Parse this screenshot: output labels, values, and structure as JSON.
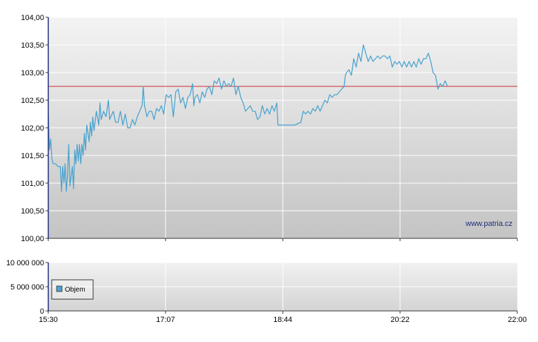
{
  "chart_data": [
    {
      "type": "line",
      "panel": "price",
      "x_ticks": [
        "15:30",
        "17:07",
        "18:44",
        "20:22",
        "22:00"
      ],
      "y_ticks": [
        "100,00",
        "100,50",
        "101,00",
        "101,50",
        "102,00",
        "102,50",
        "103,00",
        "103,50",
        "104,00"
      ],
      "ylim": [
        100.0,
        104.0
      ],
      "xlim_minutes": [
        930,
        1320
      ],
      "grid": true,
      "reference_line": {
        "value": 102.75,
        "color": "#cc2a2a"
      },
      "watermark": "www.patria.cz",
      "series": [
        {
          "color": "#4aa3cf",
          "points": [
            [
              930,
              102.25
            ],
            [
              931,
              101.6
            ],
            [
              932,
              101.8
            ],
            [
              933,
              101.45
            ],
            [
              934,
              101.35
            ],
            [
              936,
              101.35
            ],
            [
              938,
              101.3
            ],
            [
              940,
              101.3
            ],
            [
              941,
              100.85
            ],
            [
              942,
              101.3
            ],
            [
              943,
              101.0
            ],
            [
              944,
              101.35
            ],
            [
              945,
              100.85
            ],
            [
              946,
              101.15
            ],
            [
              947,
              101.7
            ],
            [
              948,
              100.95
            ],
            [
              950,
              101.3
            ],
            [
              951,
              100.9
            ],
            [
              952,
              101.6
            ],
            [
              953,
              101.35
            ],
            [
              954,
              101.7
            ],
            [
              955,
              101.4
            ],
            [
              956,
              101.7
            ],
            [
              957,
              101.35
            ],
            [
              958,
              101.7
            ],
            [
              959,
              101.5
            ],
            [
              960,
              101.9
            ],
            [
              961,
              101.6
            ],
            [
              962,
              102.05
            ],
            [
              964,
              101.75
            ],
            [
              965,
              102.1
            ],
            [
              966,
              101.85
            ],
            [
              967,
              102.2
            ],
            [
              968,
              101.95
            ],
            [
              970,
              102.3
            ],
            [
              972,
              102.05
            ],
            [
              973,
              102.45
            ],
            [
              974,
              102.15
            ],
            [
              976,
              102.3
            ],
            [
              978,
              102.2
            ],
            [
              980,
              102.5
            ],
            [
              981,
              102.15
            ],
            [
              984,
              102.3
            ],
            [
              986,
              102.1
            ],
            [
              988,
              102.1
            ],
            [
              990,
              102.3
            ],
            [
              992,
              102.05
            ],
            [
              994,
              102.25
            ],
            [
              996,
              102.0
            ],
            [
              998,
              102.0
            ],
            [
              1000,
              102.15
            ],
            [
              1002,
              102.05
            ],
            [
              1004,
              102.2
            ],
            [
              1006,
              102.3
            ],
            [
              1008,
              102.4
            ],
            [
              1009,
              102.75
            ],
            [
              1010,
              102.4
            ],
            [
              1012,
              102.2
            ],
            [
              1014,
              102.3
            ],
            [
              1016,
              102.3
            ],
            [
              1018,
              102.15
            ],
            [
              1020,
              102.35
            ],
            [
              1022,
              102.3
            ],
            [
              1024,
              102.4
            ],
            [
              1026,
              102.25
            ],
            [
              1028,
              102.6
            ],
            [
              1030,
              102.55
            ],
            [
              1032,
              102.6
            ],
            [
              1034,
              102.2
            ],
            [
              1036,
              102.65
            ],
            [
              1038,
              102.7
            ],
            [
              1040,
              102.45
            ],
            [
              1042,
              102.55
            ],
            [
              1044,
              102.35
            ],
            [
              1046,
              102.55
            ],
            [
              1048,
              102.6
            ],
            [
              1050,
              102.8
            ],
            [
              1051,
              102.4
            ],
            [
              1052,
              102.55
            ],
            [
              1054,
              102.6
            ],
            [
              1056,
              102.45
            ],
            [
              1058,
              102.65
            ],
            [
              1060,
              102.55
            ],
            [
              1062,
              102.7
            ],
            [
              1064,
              102.75
            ],
            [
              1066,
              102.6
            ],
            [
              1068,
              102.85
            ],
            [
              1070,
              102.8
            ],
            [
              1072,
              102.9
            ],
            [
              1074,
              102.7
            ],
            [
              1076,
              102.85
            ],
            [
              1078,
              102.75
            ],
            [
              1080,
              102.8
            ],
            [
              1082,
              102.75
            ],
            [
              1084,
              102.9
            ],
            [
              1086,
              102.6
            ],
            [
              1088,
              102.75
            ],
            [
              1090,
              102.55
            ],
            [
              1092,
              102.45
            ],
            [
              1094,
              102.3
            ],
            [
              1096,
              102.35
            ],
            [
              1098,
              102.4
            ],
            [
              1100,
              102.3
            ],
            [
              1102,
              102.3
            ],
            [
              1104,
              102.15
            ],
            [
              1106,
              102.2
            ],
            [
              1108,
              102.4
            ],
            [
              1110,
              102.25
            ],
            [
              1112,
              102.35
            ],
            [
              1114,
              102.25
            ],
            [
              1116,
              102.4
            ],
            [
              1118,
              102.3
            ],
            [
              1120,
              102.45
            ],
            [
              1121,
              102.05
            ],
            [
              1125,
              102.05
            ],
            [
              1130,
              102.05
            ],
            [
              1135,
              102.05
            ],
            [
              1140,
              102.1
            ],
            [
              1142,
              102.3
            ],
            [
              1144,
              102.25
            ],
            [
              1146,
              102.3
            ],
            [
              1148,
              102.25
            ],
            [
              1150,
              102.35
            ],
            [
              1152,
              102.3
            ],
            [
              1154,
              102.4
            ],
            [
              1156,
              102.3
            ],
            [
              1158,
              102.4
            ],
            [
              1160,
              102.5
            ],
            [
              1162,
              102.45
            ],
            [
              1164,
              102.6
            ],
            [
              1166,
              102.55
            ],
            [
              1168,
              102.6
            ],
            [
              1170,
              102.6
            ],
            [
              1172,
              102.65
            ],
            [
              1174,
              102.7
            ],
            [
              1176,
              102.75
            ],
            [
              1177,
              102.95
            ],
            [
              1178,
              103.0
            ],
            [
              1180,
              103.05
            ],
            [
              1182,
              102.95
            ],
            [
              1184,
              103.25
            ],
            [
              1186,
              103.1
            ],
            [
              1188,
              103.35
            ],
            [
              1190,
              103.2
            ],
            [
              1192,
              103.5
            ],
            [
              1194,
              103.35
            ],
            [
              1196,
              103.2
            ],
            [
              1198,
              103.3
            ],
            [
              1200,
              103.2
            ],
            [
              1202,
              103.25
            ],
            [
              1204,
              103.3
            ],
            [
              1206,
              103.25
            ],
            [
              1208,
              103.3
            ],
            [
              1210,
              103.3
            ],
            [
              1212,
              103.25
            ],
            [
              1214,
              103.3
            ],
            [
              1216,
              103.1
            ],
            [
              1218,
              103.2
            ],
            [
              1220,
              103.15
            ],
            [
              1222,
              103.2
            ],
            [
              1224,
              103.1
            ],
            [
              1226,
              103.2
            ],
            [
              1228,
              103.1
            ],
            [
              1230,
              103.2
            ],
            [
              1232,
              103.1
            ],
            [
              1234,
              103.2
            ],
            [
              1236,
              103.1
            ],
            [
              1238,
              103.25
            ],
            [
              1240,
              103.15
            ],
            [
              1242,
              103.25
            ],
            [
              1244,
              103.25
            ],
            [
              1246,
              103.35
            ],
            [
              1248,
              103.2
            ],
            [
              1250,
              103.0
            ],
            [
              1252,
              102.95
            ],
            [
              1254,
              102.7
            ],
            [
              1256,
              102.8
            ],
            [
              1258,
              102.75
            ],
            [
              1260,
              102.85
            ],
            [
              1262,
              102.75
            ]
          ]
        }
      ]
    },
    {
      "type": "area",
      "panel": "volume",
      "x_ticks": [
        "15:30",
        "17:07",
        "18:44",
        "20:22",
        "22:00"
      ],
      "y_ticks": [
        "0",
        "5 000 000",
        "10 000 000"
      ],
      "ylim": [
        0,
        10000000
      ],
      "grid": true,
      "legend": {
        "label": "Objem",
        "color": "#4aa3cf",
        "placement": "left"
      },
      "series": [
        {
          "name": "Objem",
          "color": "#4aa3cf",
          "values": []
        }
      ]
    }
  ]
}
